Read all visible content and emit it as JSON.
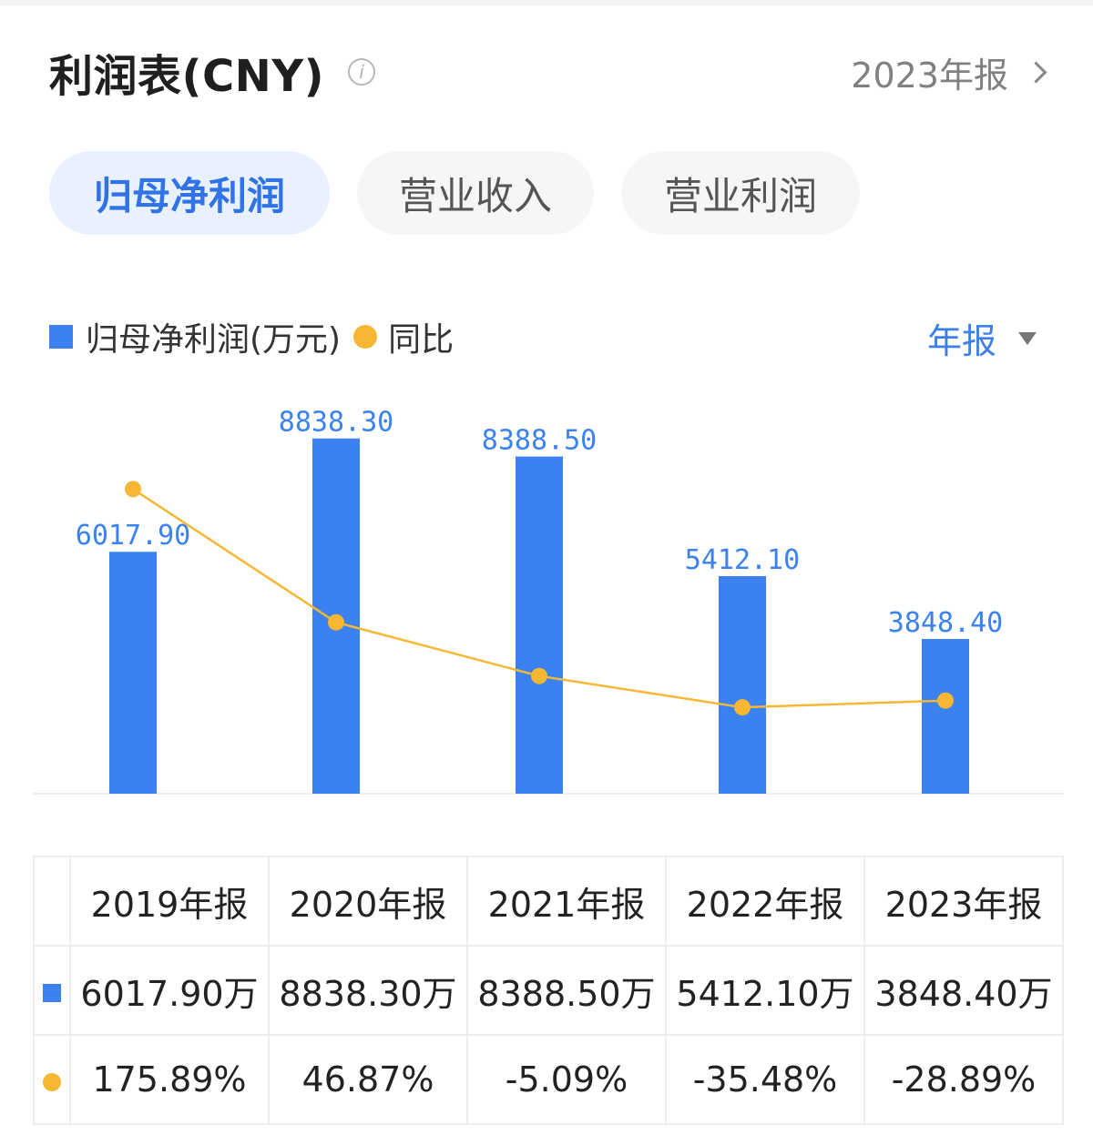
{
  "header": {
    "title": "利润表(CNY)",
    "info_icon": "info-icon",
    "report": "2023年报"
  },
  "tabs": [
    {
      "label": "归母净利润",
      "active": true
    },
    {
      "label": "营业收入",
      "active": false
    },
    {
      "label": "营业利润",
      "active": false
    }
  ],
  "legend": {
    "bar_label": "归母净利润(万元)",
    "line_label": "同比"
  },
  "period_select": "年报",
  "colors": {
    "bar": "#3b82f0",
    "line": "#f7b733",
    "positive": "#e23b3b",
    "negative": "#2aa35a",
    "accent": "#2f73e6"
  },
  "chart_data": {
    "type": "bar",
    "categories": [
      "2019年报",
      "2020年报",
      "2021年报",
      "2022年报",
      "2023年报"
    ],
    "series": [
      {
        "name": "归母净利润(万元)",
        "type": "bar",
        "values": [
          6017.9,
          8838.3,
          8388.5,
          5412.1,
          3848.4
        ],
        "labels": [
          "6017.90",
          "8838.30",
          "8388.50",
          "5412.10",
          "3848.40"
        ]
      },
      {
        "name": "同比",
        "type": "line",
        "values": [
          175.89,
          46.87,
          -5.09,
          -35.48,
          -28.89
        ]
      }
    ],
    "ylim": [
      0,
      9000
    ],
    "grid": false,
    "legend_position": "top-left"
  },
  "table": {
    "headers": [
      "2019年报",
      "2020年报",
      "2021年报",
      "2022年报",
      "2023年报"
    ],
    "values": [
      "6017.90万",
      "8838.30万",
      "8388.50万",
      "5412.10万",
      "3848.40万"
    ],
    "yoy": [
      "175.89%",
      "46.87%",
      "-5.09%",
      "-35.48%",
      "-28.89%"
    ]
  }
}
